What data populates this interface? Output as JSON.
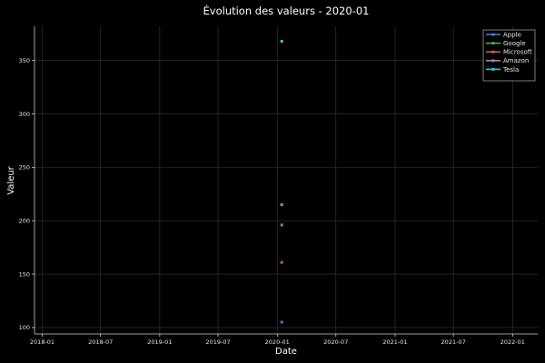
{
  "chart_data": {
    "type": "scatter",
    "title": "Évolution des valeurs - 2020-01",
    "xlabel": "Date",
    "ylabel": "Valeur",
    "x_ticks": [
      "2018-01",
      "2018-07",
      "2019-01",
      "2019-07",
      "2020-01",
      "2020-07",
      "2021-01",
      "2021-07",
      "2022-01"
    ],
    "y_ticks": [
      100,
      150,
      200,
      250,
      300,
      350
    ],
    "xlim": [
      "2017-12-08",
      "2022-03-20"
    ],
    "ylim": [
      94,
      382
    ],
    "grid": true,
    "legend_position": "top-right",
    "series": [
      {
        "name": "Apple",
        "color": "#4c78c8",
        "x": [
          "2020-01-15"
        ],
        "y": [
          105
        ]
      },
      {
        "name": "Google",
        "color": "#45b045",
        "x": [
          "2020-01-15"
        ],
        "y": [
          196
        ]
      },
      {
        "name": "Microsoft",
        "color": "#d05a5a",
        "x": [
          "2020-01-15"
        ],
        "y": [
          161
        ]
      },
      {
        "name": "Amazon",
        "color": "#9a8ab8",
        "x": [
          "2020-01-15"
        ],
        "y": [
          215
        ]
      },
      {
        "name": "Tesla",
        "color": "#2ec4e0",
        "x": [
          "2020-01-15"
        ],
        "y": [
          368
        ]
      }
    ]
  }
}
